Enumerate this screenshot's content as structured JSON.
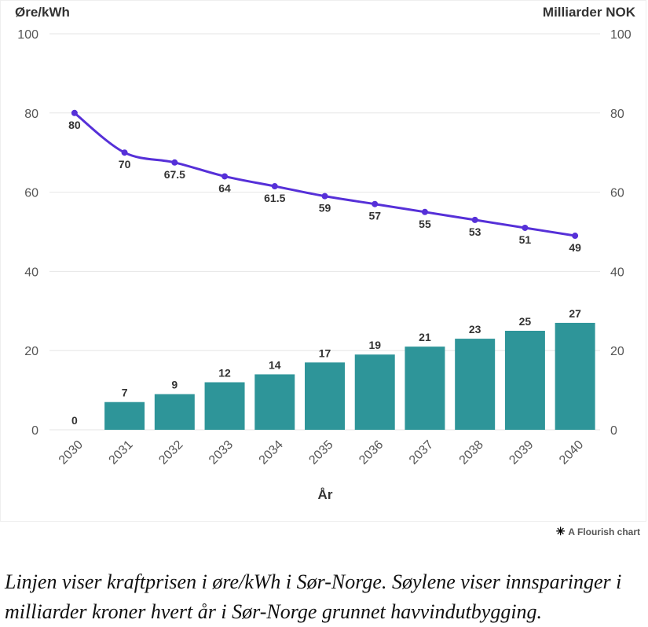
{
  "chart_data": {
    "type": "bar+line",
    "categories": [
      "2030",
      "2031",
      "2032",
      "2033",
      "2034",
      "2035",
      "2036",
      "2037",
      "2038",
      "2039",
      "2040"
    ],
    "series": [
      {
        "kind": "bar",
        "axis": "right",
        "values": [
          0,
          7,
          9,
          12,
          14,
          17,
          19,
          21,
          23,
          25,
          27
        ],
        "labels": [
          "0",
          "7",
          "9",
          "12",
          "14",
          "17",
          "19",
          "21",
          "23",
          "25",
          "27"
        ],
        "color": "#2e9599"
      },
      {
        "kind": "line",
        "axis": "left",
        "values": [
          80,
          70,
          67.5,
          64,
          61.5,
          59,
          57,
          55,
          53,
          51,
          49
        ],
        "labels": [
          "80",
          "70",
          "67.5",
          "64",
          "61.5",
          "59",
          "57",
          "55",
          "53",
          "51",
          "49"
        ],
        "color": "#5630d8"
      }
    ],
    "y_left_label": "Øre/kWh",
    "y_right_label": "Milliarder NOK",
    "xlabel": "År",
    "ylim": [
      0,
      100
    ],
    "yticks": [
      0,
      20,
      40,
      60,
      80,
      100
    ],
    "grid": true
  },
  "credit": {
    "text": "A Flourish chart",
    "icon": "asterisk-icon"
  },
  "caption": "Linjen viser kraftprisen i øre/kWh i Sør-Norge. Søylene viser innsparinger i milliarder kroner hvert år i Sør-Norge grunnet havvindutbygging."
}
